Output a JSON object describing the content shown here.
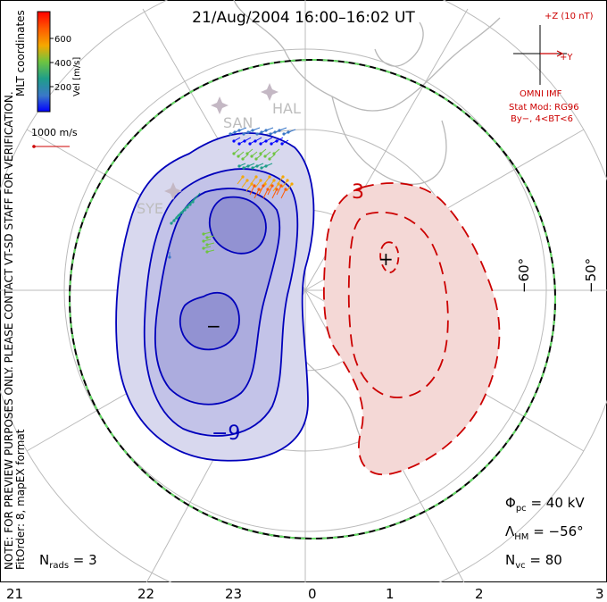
{
  "title": "21/Aug/2004  16:00–16:02  UT",
  "left_note": "NOTE: FOR PREVIEW PURPOSES ONLY. PLEASE CONTACT VT-SD STAFF FOR VERIFICATION.",
  "left_note2": "FitOrder: 8, mapEX format",
  "coord_label": "MLT coordinates",
  "color_scale": {
    "label": "Vel [m/s]",
    "ticks": [
      "200",
      "400",
      "600"
    ],
    "colors": [
      "#0000ff",
      "#3a78c8",
      "#1f9e89",
      "#6ec440",
      "#f5a800",
      "#ff5a00",
      "#ff0000"
    ]
  },
  "ref_vector": "1000 m/s",
  "imf": {
    "bz": "+Z (10 nT)",
    "by": "+Y",
    "source": "OMNI IMF",
    "model": "Stat Mod: RG96",
    "model_cond": "By−, 4<BT<6"
  },
  "stations": [
    "SAN",
    "HAL",
    "SYE"
  ],
  "lat_labels": [
    "−60°",
    "−50°"
  ],
  "mlt_labels": [
    "21",
    "22",
    "23",
    "0",
    "1",
    "2",
    "3"
  ],
  "contours": {
    "neg_label": "−9",
    "pos_label": "3",
    "min_marker": "−",
    "max_marker": "+"
  },
  "stats": {
    "phi_sym": "Φ",
    "phi_sub": "pc",
    "phi_val": " = 40 kV",
    "lam_sym": "Λ",
    "lam_sub": "HM",
    "lam_val": " = −56°",
    "nvc_sym": "N",
    "nvc_sub": "vc",
    "nvc_val": " = 80",
    "nrads_sym": "N",
    "nrads_sub": "rads",
    "nrads_val": " = 3"
  },
  "chart_data": {
    "type": "map",
    "title": "21/Aug/2004  16:00–16:02  UT",
    "potential_cross_polar_kV": 40,
    "heppner_maynard_boundary_deg": -56,
    "n_vectors": 80,
    "n_radars": 3,
    "mlt_ticks": [
      21,
      22,
      23,
      0,
      1,
      2,
      3
    ],
    "velocity_scale_m_s": [
      200,
      400,
      600
    ]
  }
}
